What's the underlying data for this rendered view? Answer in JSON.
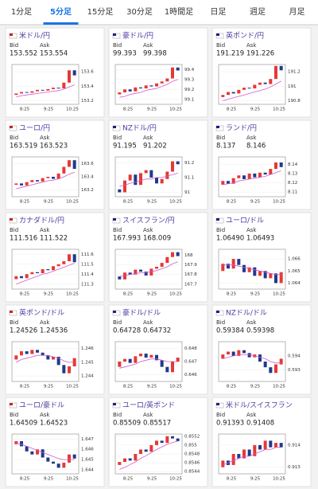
{
  "tabs": [
    "1分足",
    "5分足",
    "15分足",
    "30分足",
    "1時間足",
    "日足",
    "週足",
    "月足"
  ],
  "active_tab": "5分足",
  "bid_label": "Bid",
  "ask_label": "Ask",
  "xtick_labels": [
    "8:25",
    "9:25",
    "10:25"
  ],
  "cards": [
    {
      "pair": "米ドル/円",
      "bid": "153.552",
      "ask": "153.554",
      "ylim": [
        153.15,
        153.7
      ],
      "yticks": [
        153.2,
        153.4,
        153.6
      ],
      "open": 153.28,
      "values": [
        153.3,
        153.32,
        153.31,
        153.33,
        153.35,
        153.34,
        153.36,
        153.38,
        153.37,
        153.45,
        153.62,
        153.55
      ],
      "ma": [
        153.25,
        153.27,
        153.28,
        153.29,
        153.3,
        153.31,
        153.32,
        153.33,
        153.34,
        153.36,
        153.39,
        153.42
      ]
    },
    {
      "pair": "豪ドル/円",
      "bid": "99.393",
      "ask": "99.398",
      "ylim": [
        99.05,
        99.45
      ],
      "yticks": [
        99.1,
        99.2,
        99.3,
        99.4
      ],
      "open": 99.15,
      "values": [
        99.17,
        99.2,
        99.18,
        99.22,
        99.21,
        99.24,
        99.23,
        99.26,
        99.28,
        99.31,
        99.42,
        99.39
      ],
      "ma": [
        99.12,
        99.13,
        99.15,
        99.16,
        99.17,
        99.19,
        99.2,
        99.21,
        99.23,
        99.25,
        99.28,
        99.3
      ]
    },
    {
      "pair": "英ポンド/円",
      "bid": "191.219",
      "ask": "191.226",
      "ylim": [
        190.75,
        191.3
      ],
      "yticks": [
        190.8,
        191,
        191.2
      ],
      "open": 190.85,
      "values": [
        190.88,
        190.92,
        190.9,
        190.95,
        190.98,
        190.97,
        191.02,
        191.05,
        191.03,
        191.1,
        191.28,
        191.22
      ],
      "ma": [
        190.8,
        190.82,
        190.84,
        190.86,
        190.88,
        190.9,
        190.92,
        190.94,
        190.96,
        190.99,
        191.03,
        191.07
      ]
    },
    {
      "pair": "ユーロ/円",
      "bid": "163.519",
      "ask": "163.523",
      "ylim": [
        163.1,
        163.7
      ],
      "yticks": [
        163.2,
        163.4,
        163.6
      ],
      "open": 163.28,
      "values": [
        163.3,
        163.27,
        163.32,
        163.35,
        163.33,
        163.38,
        163.4,
        163.37,
        163.45,
        163.55,
        163.65,
        163.52
      ],
      "ma": [
        163.22,
        163.24,
        163.26,
        163.28,
        163.3,
        163.32,
        163.34,
        163.35,
        163.37,
        163.4,
        163.44,
        163.47
      ]
    },
    {
      "pair": "NZドル/円",
      "bid": "91.195",
      "ask": "91.202",
      "ylim": [
        90.97,
        91.24
      ],
      "yticks": [
        91,
        91.1,
        91.2
      ],
      "open": 91.02,
      "values": [
        91.0,
        91.08,
        91.12,
        91.05,
        91.13,
        91.15,
        91.1,
        91.06,
        91.09,
        91.14,
        91.21,
        91.19
      ],
      "ma": [
        91.04,
        91.05,
        91.06,
        91.07,
        91.08,
        91.09,
        91.09,
        91.1,
        91.1,
        91.11,
        91.12,
        91.13
      ]
    },
    {
      "pair": "ランド/円",
      "bid": "8.137",
      "ask": "8.146",
      "ylim": [
        8.105,
        8.148
      ],
      "yticks": [
        8.11,
        8.12,
        8.13,
        8.14
      ],
      "open": 8.118,
      "values": [
        8.122,
        8.119,
        8.125,
        8.128,
        8.124,
        8.13,
        8.126,
        8.131,
        8.129,
        8.135,
        8.142,
        8.137
      ],
      "ma": [
        8.118,
        8.119,
        8.12,
        8.122,
        8.123,
        8.124,
        8.125,
        8.126,
        8.127,
        8.129,
        8.131,
        8.133
      ]
    },
    {
      "pair": "カナダドル/円",
      "bid": "111.516",
      "ask": "111.522",
      "ylim": [
        111.25,
        111.65
      ],
      "yticks": [
        111.3,
        111.4,
        111.5,
        111.6
      ],
      "open": 111.35,
      "values": [
        111.38,
        111.36,
        111.4,
        111.42,
        111.41,
        111.45,
        111.44,
        111.48,
        111.5,
        111.53,
        111.6,
        111.52
      ],
      "ma": [
        111.3,
        111.32,
        111.34,
        111.36,
        111.38,
        111.4,
        111.41,
        111.43,
        111.45,
        111.47,
        111.49,
        111.51
      ]
    },
    {
      "pair": "スイスフラン/円",
      "bid": "167.993",
      "ask": "168.009",
      "ylim": [
        167.65,
        168.06
      ],
      "yticks": [
        167.7,
        167.8,
        167.9,
        168
      ],
      "open": 167.78,
      "values": [
        167.75,
        167.82,
        167.8,
        167.85,
        167.83,
        167.79,
        167.86,
        167.88,
        167.92,
        167.98,
        168.03,
        167.99
      ],
      "ma": [
        167.78,
        167.79,
        167.8,
        167.81,
        167.82,
        167.82,
        167.83,
        167.84,
        167.86,
        167.88,
        167.91,
        167.93
      ]
    },
    {
      "pair": "ユーロ/ドル",
      "bid": "1.06490",
      "ask": "1.06493",
      "ylim": [
        1.0635,
        1.0668
      ],
      "yticks": [
        1.064,
        1.065,
        1.066
      ],
      "open": 1.065,
      "values": [
        1.0656,
        1.0652,
        1.066,
        1.0655,
        1.0649,
        1.0653,
        1.0646,
        1.065,
        1.0644,
        1.0648,
        1.064,
        1.0649
      ],
      "ma": [
        1.0655,
        1.0655,
        1.0655,
        1.0654,
        1.0653,
        1.0652,
        1.0651,
        1.065,
        1.0649,
        1.0648,
        1.0647,
        1.0647
      ]
    },
    {
      "pair": "英ポンド/ドル",
      "bid": "1.24526",
      "ask": "1.24536",
      "ylim": [
        1.2436,
        1.2465
      ],
      "yticks": [
        1.244,
        1.245,
        1.246
      ],
      "open": 1.2452,
      "values": [
        1.2455,
        1.2458,
        1.2456,
        1.2459,
        1.2457,
        1.2455,
        1.2452,
        1.2454,
        1.2448,
        1.2442,
        1.2447,
        1.2453
      ],
      "ma": [
        1.245,
        1.2452,
        1.2453,
        1.2454,
        1.2455,
        1.2455,
        1.2455,
        1.2454,
        1.2453,
        1.2451,
        1.245,
        1.245
      ]
    },
    {
      "pair": "豪ドル/ドル",
      "bid": "0.64728",
      "ask": "0.64732",
      "ylim": [
        0.6455,
        0.6485
      ],
      "yticks": [
        0.646,
        0.647,
        0.648
      ],
      "open": 0.6466,
      "values": [
        0.647,
        0.6472,
        0.6469,
        0.6474,
        0.6476,
        0.6473,
        0.6475,
        0.6471,
        0.6466,
        0.6462,
        0.647,
        0.6473
      ],
      "ma": [
        0.6465,
        0.6466,
        0.6467,
        0.6468,
        0.647,
        0.6471,
        0.6472,
        0.6472,
        0.6471,
        0.647,
        0.647,
        0.647
      ]
    },
    {
      "pair": "NZドル/ドル",
      "bid": "0.59384",
      "ask": "0.59398",
      "ylim": [
        0.5922,
        0.595
      ],
      "yticks": [
        0.593,
        0.594
      ],
      "open": 0.5938,
      "values": [
        0.5941,
        0.5943,
        0.594,
        0.5944,
        0.5942,
        0.5939,
        0.5941,
        0.5936,
        0.5932,
        0.5928,
        0.5934,
        0.5938
      ],
      "ma": [
        0.5938,
        0.5939,
        0.594,
        0.5941,
        0.5941,
        0.5941,
        0.594,
        0.5939,
        0.5938,
        0.5936,
        0.5935,
        0.5935
      ]
    },
    {
      "pair": "ユーロ/豪ドル",
      "bid": "1.64509",
      "ask": "1.64523",
      "ylim": [
        1.6436,
        1.6475
      ],
      "yticks": [
        1.644,
        1.645,
        1.646,
        1.647
      ],
      "open": 1.6465,
      "values": [
        1.6468,
        1.6463,
        1.6458,
        1.6455,
        1.646,
        1.6452,
        1.6448,
        1.6446,
        1.6442,
        1.6447,
        1.6455,
        1.6451
      ],
      "ma": [
        1.6466,
        1.6465,
        1.6463,
        1.6461,
        1.6459,
        1.6457,
        1.6455,
        1.6453,
        1.6451,
        1.645,
        1.645,
        1.645
      ]
    },
    {
      "pair": "ユーロ/英ポンド",
      "bid": "0.85509",
      "ask": "0.85517",
      "ylim": [
        0.85435,
        0.85525
      ],
      "yticks": [
        0.8544,
        0.8546,
        0.8548,
        0.855,
        0.8552
      ],
      "open": 0.85455,
      "values": [
        0.85462,
        0.8547,
        0.85465,
        0.8548,
        0.8549,
        0.85485,
        0.855,
        0.8551,
        0.85505,
        0.8552,
        0.85515,
        0.85509
      ],
      "ma": [
        0.85445,
        0.8545,
        0.85456,
        0.85462,
        0.8547,
        0.85476,
        0.85483,
        0.8549,
        0.85496,
        0.85502,
        0.85506,
        0.85509
      ]
    },
    {
      "pair": "米ドル/スイスフラン",
      "bid": "0.91393",
      "ask": "0.91408",
      "ylim": [
        0.9127,
        0.9145
      ],
      "yticks": [
        0.913,
        0.914
      ],
      "open": 0.913,
      "values": [
        0.9133,
        0.9131,
        0.9136,
        0.9134,
        0.9138,
        0.9135,
        0.914,
        0.9138,
        0.9142,
        0.9139,
        0.9141,
        0.9139
      ],
      "ma": [
        0.9131,
        0.9132,
        0.9133,
        0.9134,
        0.9135,
        0.9135,
        0.9136,
        0.9137,
        0.9138,
        0.9138,
        0.9139,
        0.9139
      ]
    }
  ]
}
